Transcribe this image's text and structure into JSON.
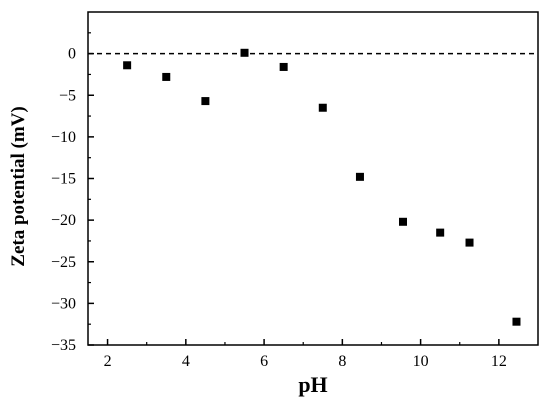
{
  "chart_data": {
    "type": "scatter",
    "title": "",
    "xlabel": "pH",
    "ylabel": "Zeta potential (mV)",
    "xlim": [
      1.5,
      13
    ],
    "ylim": [
      -35,
      5
    ],
    "xticks": [
      2,
      4,
      6,
      8,
      10,
      12
    ],
    "yticks": [
      0,
      -5,
      -10,
      -15,
      -20,
      -25,
      -30,
      -35
    ],
    "grid": false,
    "legend": "none",
    "reference_line": {
      "y": 0,
      "style": "dashed"
    },
    "marker": {
      "shape": "square",
      "color": "#000000"
    },
    "series": [
      {
        "x": [
          2.5,
          3.5,
          4.5,
          5.5,
          6.5,
          7.5,
          8.45,
          9.55,
          10.5,
          11.25,
          12.45
        ],
        "y": [
          -1.4,
          -2.8,
          -5.7,
          0.1,
          -1.6,
          -6.5,
          -14.8,
          -20.2,
          -21.5,
          -22.7,
          -32.2
        ]
      }
    ]
  }
}
